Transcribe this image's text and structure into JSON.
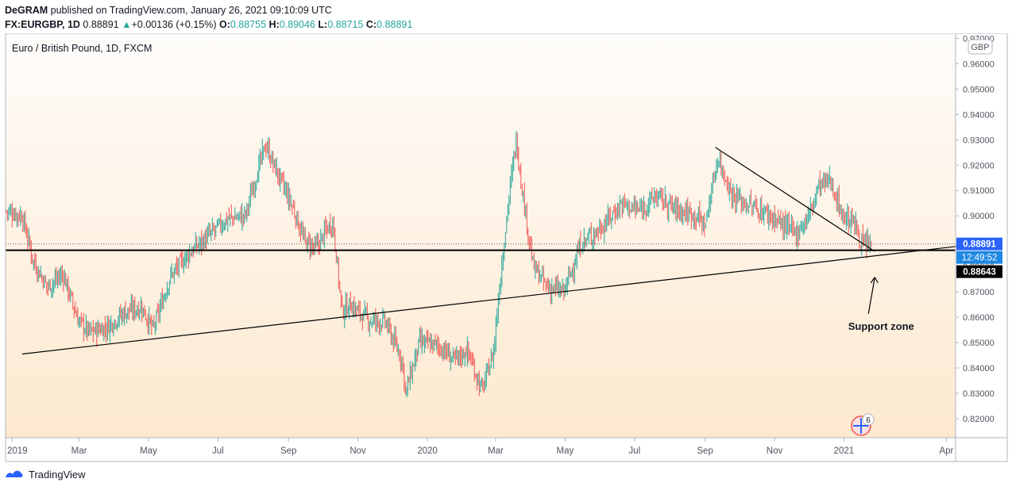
{
  "header": {
    "line1": {
      "author": "DeGRAM",
      "rest": "published on TradingView.com, January 26, 2021 09:10:09 UTC"
    },
    "line2": {
      "symbol": "FX:EURGBP, 1D",
      "last": "0.88891",
      "change_arrow": "▲",
      "change": "+0.00136 (+0.15%)",
      "o_label": "O:",
      "o": "0.88755",
      "h_label": "H:",
      "h": "0.89046",
      "l_label": "L:",
      "l": "0.88715",
      "c_label": "C:",
      "c": "0.88891"
    }
  },
  "footer": {
    "brand": "TradingView",
    "logo_icon": "tradingview-logo-icon"
  },
  "colors": {
    "up": "#26a69a",
    "down": "#ef5350",
    "bg_top": "#fefcfa",
    "bg_bottom": "#fde9cf",
    "price_badge": "#2962ff",
    "support_badge": "#000000"
  },
  "chart_data": {
    "type": "candlestick",
    "title": "Euro / British Pound, 1D, FXCM",
    "currency": "GBP",
    "ylim": [
      0.8125,
      0.972
    ],
    "y_ticks": [
      "0.97000",
      "0.96000",
      "0.95000",
      "0.94000",
      "0.93000",
      "0.92000",
      "0.91000",
      "0.90000",
      "0.89000",
      "0.88000",
      "0.87000",
      "0.86000",
      "0.85000",
      "0.84000",
      "0.83000",
      "0.82000"
    ],
    "x_ticks": [
      {
        "label": "2019",
        "date": "2019-01"
      },
      {
        "label": "Mar",
        "date": "2019-03"
      },
      {
        "label": "May",
        "date": "2019-05"
      },
      {
        "label": "Jul",
        "date": "2019-07"
      },
      {
        "label": "Sep",
        "date": "2019-09"
      },
      {
        "label": "Nov",
        "date": "2019-11"
      },
      {
        "label": "2020",
        "date": "2020-01"
      },
      {
        "label": "Mar",
        "date": "2020-03"
      },
      {
        "label": "May",
        "date": "2020-05"
      },
      {
        "label": "Jul",
        "date": "2020-07"
      },
      {
        "label": "Sep",
        "date": "2020-09"
      },
      {
        "label": "Nov",
        "date": "2020-11"
      },
      {
        "label": "2021",
        "date": "2021-01"
      },
      {
        "label": "Apr",
        "date": "2021-04"
      }
    ],
    "price_path": [
      [
        "2018-12-27",
        0.902
      ],
      [
        "2019-01-10",
        0.9
      ],
      [
        "2019-01-20",
        0.882
      ],
      [
        "2019-02-01",
        0.872
      ],
      [
        "2019-02-15",
        0.877
      ],
      [
        "2019-02-28",
        0.859
      ],
      [
        "2019-03-10",
        0.854
      ],
      [
        "2019-03-25",
        0.856
      ],
      [
        "2019-04-10",
        0.862
      ],
      [
        "2019-04-25",
        0.864
      ],
      [
        "2019-05-05",
        0.855
      ],
      [
        "2019-05-20",
        0.876
      ],
      [
        "2019-06-05",
        0.885
      ],
      [
        "2019-06-25",
        0.893
      ],
      [
        "2019-07-10",
        0.899
      ],
      [
        "2019-07-25",
        0.9
      ],
      [
        "2019-08-05",
        0.918
      ],
      [
        "2019-08-12",
        0.928
      ],
      [
        "2019-08-20",
        0.919
      ],
      [
        "2019-09-05",
        0.903
      ],
      [
        "2019-09-15",
        0.89
      ],
      [
        "2019-09-25",
        0.887
      ],
      [
        "2019-10-05",
        0.895
      ],
      [
        "2019-10-10",
        0.898
      ],
      [
        "2019-10-18",
        0.862
      ],
      [
        "2019-10-25",
        0.865
      ],
      [
        "2019-11-10",
        0.859
      ],
      [
        "2019-11-25",
        0.858
      ],
      [
        "2019-12-10",
        0.843
      ],
      [
        "2019-12-13",
        0.83
      ],
      [
        "2019-12-25",
        0.85
      ],
      [
        "2020-01-10",
        0.849
      ],
      [
        "2020-01-25",
        0.843
      ],
      [
        "2020-02-05",
        0.847
      ],
      [
        "2020-02-18",
        0.831
      ],
      [
        "2020-02-28",
        0.846
      ],
      [
        "2020-03-05",
        0.875
      ],
      [
        "2020-03-12",
        0.905
      ],
      [
        "2020-03-19",
        0.93
      ],
      [
        "2020-03-26",
        0.905
      ],
      [
        "2020-04-03",
        0.88
      ],
      [
        "2020-04-15",
        0.872
      ],
      [
        "2020-04-30",
        0.87
      ],
      [
        "2020-05-15",
        0.889
      ],
      [
        "2020-06-01",
        0.895
      ],
      [
        "2020-06-20",
        0.905
      ],
      [
        "2020-07-05",
        0.902
      ],
      [
        "2020-07-20",
        0.908
      ],
      [
        "2020-08-05",
        0.903
      ],
      [
        "2020-08-25",
        0.9
      ],
      [
        "2020-09-01",
        0.896
      ],
      [
        "2020-09-12",
        0.923
      ],
      [
        "2020-09-25",
        0.908
      ],
      [
        "2020-10-10",
        0.904
      ],
      [
        "2020-10-25",
        0.901
      ],
      [
        "2020-11-10",
        0.896
      ],
      [
        "2020-11-20",
        0.893
      ],
      [
        "2020-12-01",
        0.9
      ],
      [
        "2020-12-10",
        0.912
      ],
      [
        "2020-12-20",
        0.914
      ],
      [
        "2020-12-31",
        0.9
      ],
      [
        "2021-01-10",
        0.897
      ],
      [
        "2021-01-18",
        0.888
      ],
      [
        "2021-01-26",
        0.8889
      ]
    ],
    "last_price": {
      "value": 0.88891,
      "label": "0.88891",
      "countdown": "12:49:52"
    },
    "support_level": {
      "value": 0.88643,
      "label": "0.88643"
    },
    "trendlines": [
      {
        "name": "rising support",
        "from": [
          "2019-01-10",
          0.8455
        ],
        "to": [
          "2021-05-10",
          0.8895
        ]
      },
      {
        "name": "falling resistance",
        "from": [
          "2020-09-10",
          0.927
        ],
        "to": [
          "2021-01-28",
          0.886
        ]
      }
    ],
    "annotation": {
      "text": "Support zone",
      "target": [
        "2021-01-26",
        0.877
      ]
    },
    "events_badge": "6",
    "grid": false,
    "legend": "none"
  }
}
